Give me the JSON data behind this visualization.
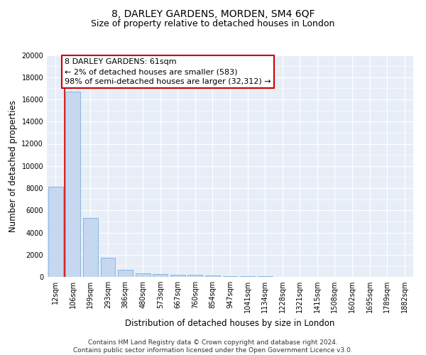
{
  "title": "8, DARLEY GARDENS, MORDEN, SM4 6QF",
  "subtitle": "Size of property relative to detached houses in London",
  "xlabel": "Distribution of detached houses by size in London",
  "ylabel": "Number of detached properties",
  "bar_color": "#c5d8f0",
  "bar_edge_color": "#7aadda",
  "vline_color": "#cc0000",
  "annotation_text": "8 DARLEY GARDENS: 61sqm\n← 2% of detached houses are smaller (583)\n98% of semi-detached houses are larger (32,312) →",
  "annotation_box_color": "#ffffff",
  "annotation_box_edge": "#cc0000",
  "categories": [
    "12sqm",
    "106sqm",
    "199sqm",
    "293sqm",
    "386sqm",
    "480sqm",
    "573sqm",
    "667sqm",
    "760sqm",
    "854sqm",
    "947sqm",
    "1041sqm",
    "1134sqm",
    "1228sqm",
    "1321sqm",
    "1415sqm",
    "1508sqm",
    "1602sqm",
    "1695sqm",
    "1789sqm",
    "1882sqm"
  ],
  "values": [
    8100,
    16700,
    5300,
    1750,
    650,
    350,
    250,
    200,
    170,
    120,
    90,
    70,
    50,
    30,
    20,
    10,
    5,
    3,
    2,
    1,
    1
  ],
  "ylim": [
    0,
    20000
  ],
  "yticks": [
    0,
    2000,
    4000,
    6000,
    8000,
    10000,
    12000,
    14000,
    16000,
    18000,
    20000
  ],
  "background_color": "#e8eef8",
  "grid_color": "#ffffff",
  "footer": "Contains HM Land Registry data © Crown copyright and database right 2024.\nContains public sector information licensed under the Open Government Licence v3.0.",
  "title_fontsize": 10,
  "subtitle_fontsize": 9,
  "xlabel_fontsize": 8.5,
  "ylabel_fontsize": 8.5,
  "tick_fontsize": 7,
  "footer_fontsize": 6.5,
  "annot_fontsize": 8
}
